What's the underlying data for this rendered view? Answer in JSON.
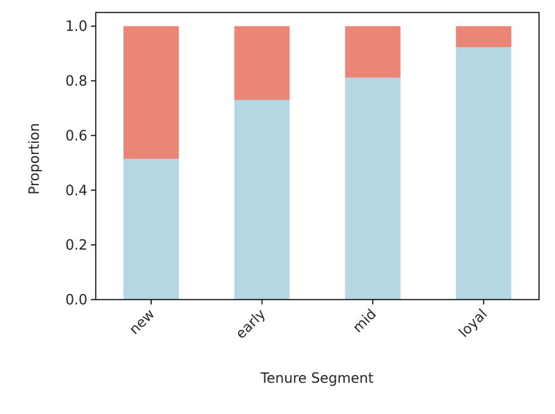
{
  "chart_data": {
    "type": "bar",
    "stacked": true,
    "categories": [
      "new",
      "early",
      "mid",
      "loyal"
    ],
    "series": [
      {
        "values": [
          0.515,
          0.73,
          0.812,
          0.923
        ],
        "color": "#b4d7e3"
      },
      {
        "values": [
          0.485,
          0.27,
          0.188,
          0.077
        ],
        "color": "#eb8677"
      }
    ],
    "title": "",
    "xlabel": "Tenure Segment",
    "ylabel": "Proportion",
    "ylim": [
      0.0,
      1.05
    ],
    "yticks": [
      0.0,
      0.2,
      0.4,
      0.6,
      0.8,
      1.0
    ],
    "ytick_labels": [
      "0.0",
      "0.2",
      "0.4",
      "0.6",
      "0.8",
      "1.0"
    ],
    "grid": false,
    "legend": "none"
  }
}
